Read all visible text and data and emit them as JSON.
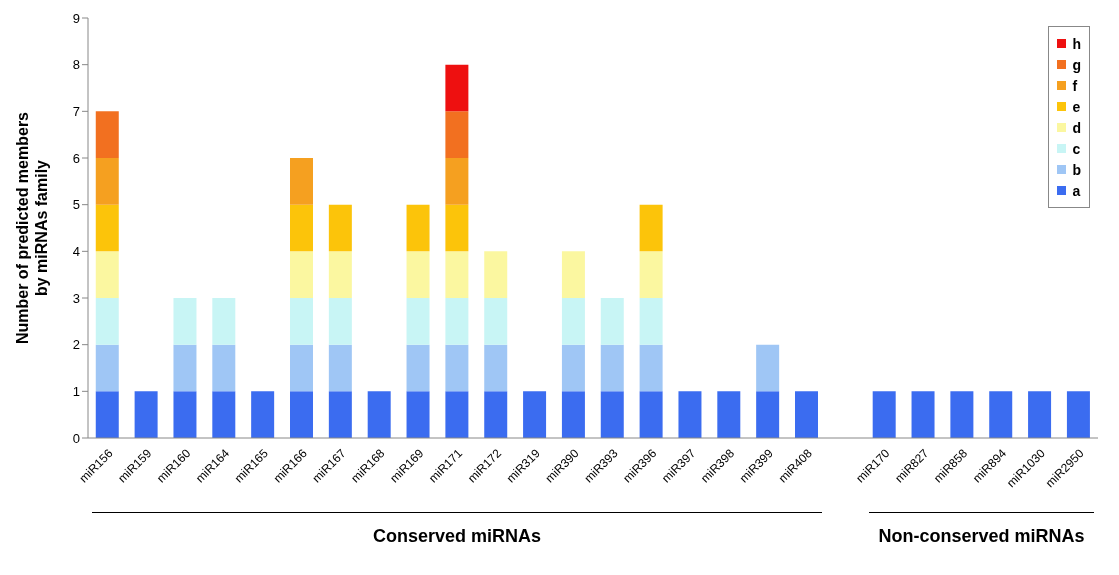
{
  "chart_data": {
    "type": "bar",
    "stacked": true,
    "ylabel": "Number of predicted members by miRNAs family",
    "categories": [
      "miR156",
      "miR159",
      "miR160",
      "miR164",
      "miR165",
      "miR166",
      "miR167",
      "miR168",
      "miR169",
      "miR171",
      "miR172",
      "miR319",
      "miR390",
      "miR393",
      "miR396",
      "miR397",
      "miR398",
      "miR399",
      "miR408",
      null,
      "miR170",
      "miR827",
      "miR858",
      "miR894",
      "miR1030",
      "miR2950"
    ],
    "series": [
      {
        "name": "a",
        "color": "#3b6cf0",
        "values": [
          1,
          1,
          1,
          1,
          1,
          1,
          1,
          1,
          1,
          1,
          1,
          1,
          1,
          1,
          1,
          1,
          1,
          1,
          1,
          null,
          1,
          1,
          1,
          1,
          1,
          1
        ]
      },
      {
        "name": "b",
        "color": "#9fc6f5",
        "values": [
          1,
          null,
          1,
          1,
          null,
          1,
          1,
          null,
          1,
          1,
          1,
          null,
          1,
          1,
          1,
          null,
          null,
          1,
          null,
          null,
          null,
          null,
          null,
          null,
          null,
          null
        ]
      },
      {
        "name": "c",
        "color": "#c8f5f5",
        "values": [
          1,
          null,
          1,
          1,
          null,
          1,
          1,
          null,
          1,
          1,
          1,
          null,
          1,
          1,
          1,
          null,
          null,
          null,
          null,
          null,
          null,
          null,
          null,
          null,
          null,
          null
        ]
      },
      {
        "name": "d",
        "color": "#fbf7a0",
        "values": [
          1,
          null,
          null,
          null,
          null,
          1,
          1,
          null,
          1,
          1,
          1,
          null,
          1,
          null,
          1,
          null,
          null,
          null,
          null,
          null,
          null,
          null,
          null,
          null,
          null,
          null
        ]
      },
      {
        "name": "e",
        "color": "#fcc40a",
        "values": [
          1,
          null,
          null,
          null,
          null,
          1,
          1,
          null,
          1,
          1,
          null,
          null,
          null,
          null,
          1,
          null,
          null,
          null,
          null,
          null,
          null,
          null,
          null,
          null,
          null,
          null
        ]
      },
      {
        "name": "f",
        "color": "#f5a020",
        "values": [
          1,
          null,
          null,
          null,
          null,
          1,
          null,
          null,
          null,
          1,
          null,
          null,
          null,
          null,
          null,
          null,
          null,
          null,
          null,
          null,
          null,
          null,
          null,
          null,
          null,
          null
        ]
      },
      {
        "name": "g",
        "color": "#f27020",
        "values": [
          1,
          null,
          null,
          null,
          null,
          null,
          null,
          null,
          null,
          1,
          null,
          null,
          null,
          null,
          null,
          null,
          null,
          null,
          null,
          null,
          null,
          null,
          null,
          null,
          null,
          null
        ]
      },
      {
        "name": "h",
        "color": "#ee1010",
        "values": [
          null,
          null,
          null,
          null,
          null,
          null,
          null,
          null,
          null,
          1,
          null,
          null,
          null,
          null,
          null,
          null,
          null,
          null,
          null,
          null,
          null,
          null,
          null,
          null,
          null,
          null
        ]
      }
    ],
    "ylim": [
      0,
      9
    ],
    "yticks": [
      0,
      1,
      2,
      3,
      4,
      5,
      6,
      7,
      8,
      9
    ],
    "legend": "top right",
    "annotations": [
      "Conserved miRNAs",
      "Non-conserved miRNAs"
    ]
  }
}
